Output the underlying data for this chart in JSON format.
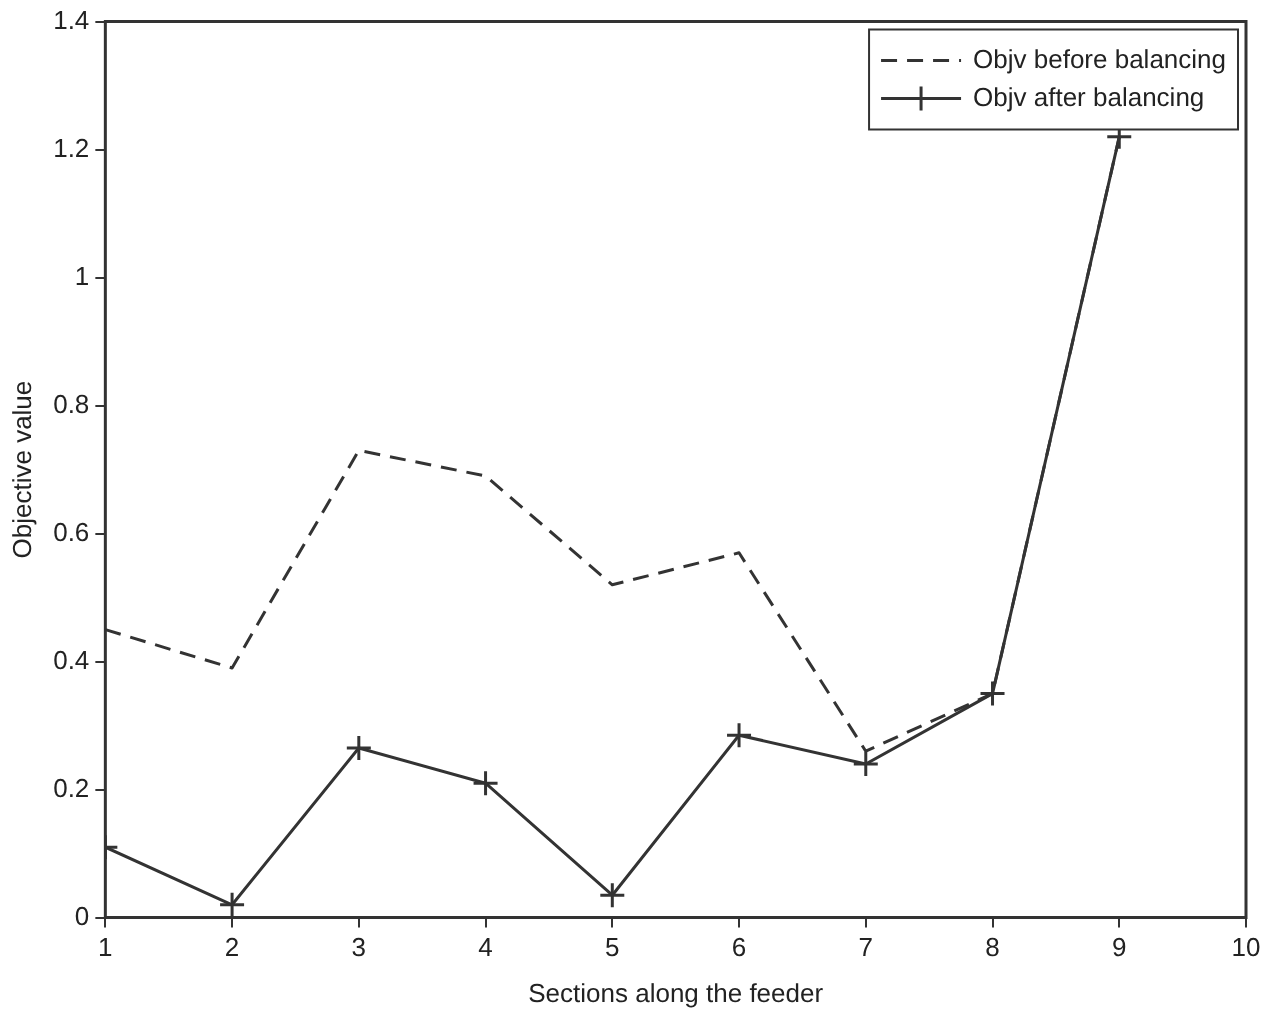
{
  "chart_data": {
    "type": "line",
    "xlabel": "Sections along the feeder",
    "ylabel": "Objective value",
    "x": [
      1,
      2,
      3,
      4,
      5,
      6,
      7,
      8,
      9
    ],
    "xlim": [
      1,
      10
    ],
    "xticks": [
      1,
      2,
      3,
      4,
      5,
      6,
      7,
      8,
      9,
      10
    ],
    "ylim": [
      0,
      1.4
    ],
    "yticks": [
      0,
      0.2,
      0.4,
      0.6,
      0.8,
      1,
      1.2,
      1.4
    ],
    "grid": false,
    "legend": "top right",
    "series": [
      {
        "name": "Objv before balancing",
        "color": "#333333",
        "line_style": "dashed",
        "marker": "none",
        "values": [
          0.45,
          0.39,
          0.73,
          0.69,
          0.52,
          0.57,
          0.26,
          0.35,
          1.22
        ]
      },
      {
        "name": "Objv after balancing",
        "color": "#333333",
        "line_style": "solid",
        "marker": "cross",
        "values": [
          0.11,
          0.02,
          0.265,
          0.21,
          0.035,
          0.285,
          0.24,
          0.35,
          1.22
        ]
      }
    ]
  }
}
